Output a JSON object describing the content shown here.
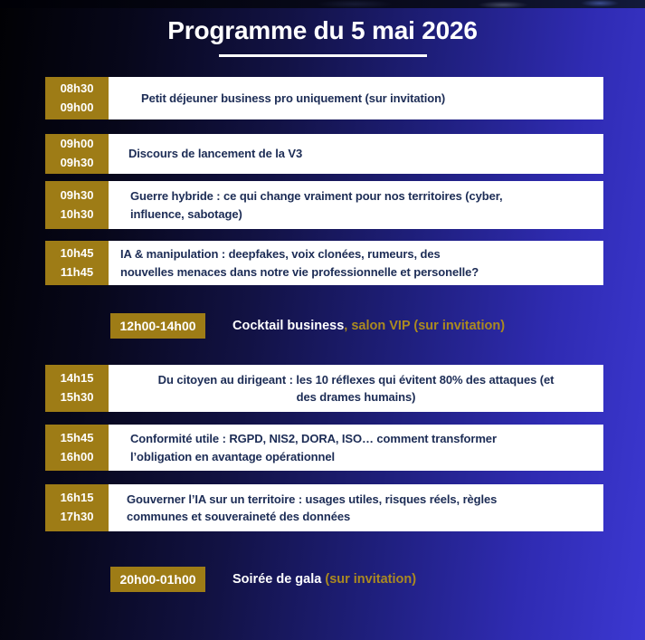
{
  "title": "Programme du 5 mai 2026",
  "schedule": {
    "rows": [
      {
        "time": "08h30\n09h00",
        "text": "Petit déjeuner business pro uniquement (sur invitation)"
      },
      {
        "time": "09h00\n09h30",
        "text": "Discours de lancement de la V3"
      },
      {
        "time": "09h30\n10h30",
        "text": "Guerre hybride : ce qui change vraiment pour nos territoires (cyber,\ninfluence, sabotage)"
      },
      {
        "time": "10h45\n11h45",
        "text": "IA & manipulation : deepfakes, voix clonées, rumeurs, des\nnouvelles menaces dans notre vie professionnelle et personelle?"
      },
      {
        "time": "14h15\n15h30",
        "text": "Du citoyen au dirigeant : les 10 réflexes qui évitent 80% des attaques (et\ndes drames humains)"
      },
      {
        "time": "15h45\n16h00",
        "text": "Conformité utile : RGPD, NIS2, DORA, ISO… comment transformer\nl’obligation en avantage opérationnel"
      },
      {
        "time": "16h15\n17h30",
        "text": "Gouverner l’IA sur un territoire : usages utiles, risques réels, règles\ncommunes et souveraineté des données"
      }
    ],
    "banners": [
      {
        "time": "12h00-14h00",
        "text_white": "Cocktail business",
        "text_gold": ", salon VIP (sur invitation)"
      },
      {
        "time": "20h00-01h00",
        "text_white": "Soirée de gala ",
        "text_gold": "(sur invitation)"
      }
    ]
  },
  "colors": {
    "gold": "#9e7c16",
    "gold_text": "#ab8a20",
    "navy_text": "#1c2c55",
    "bg_left": "#010104",
    "bg_right": "#3c38d2",
    "title_text": "#ffffff"
  }
}
